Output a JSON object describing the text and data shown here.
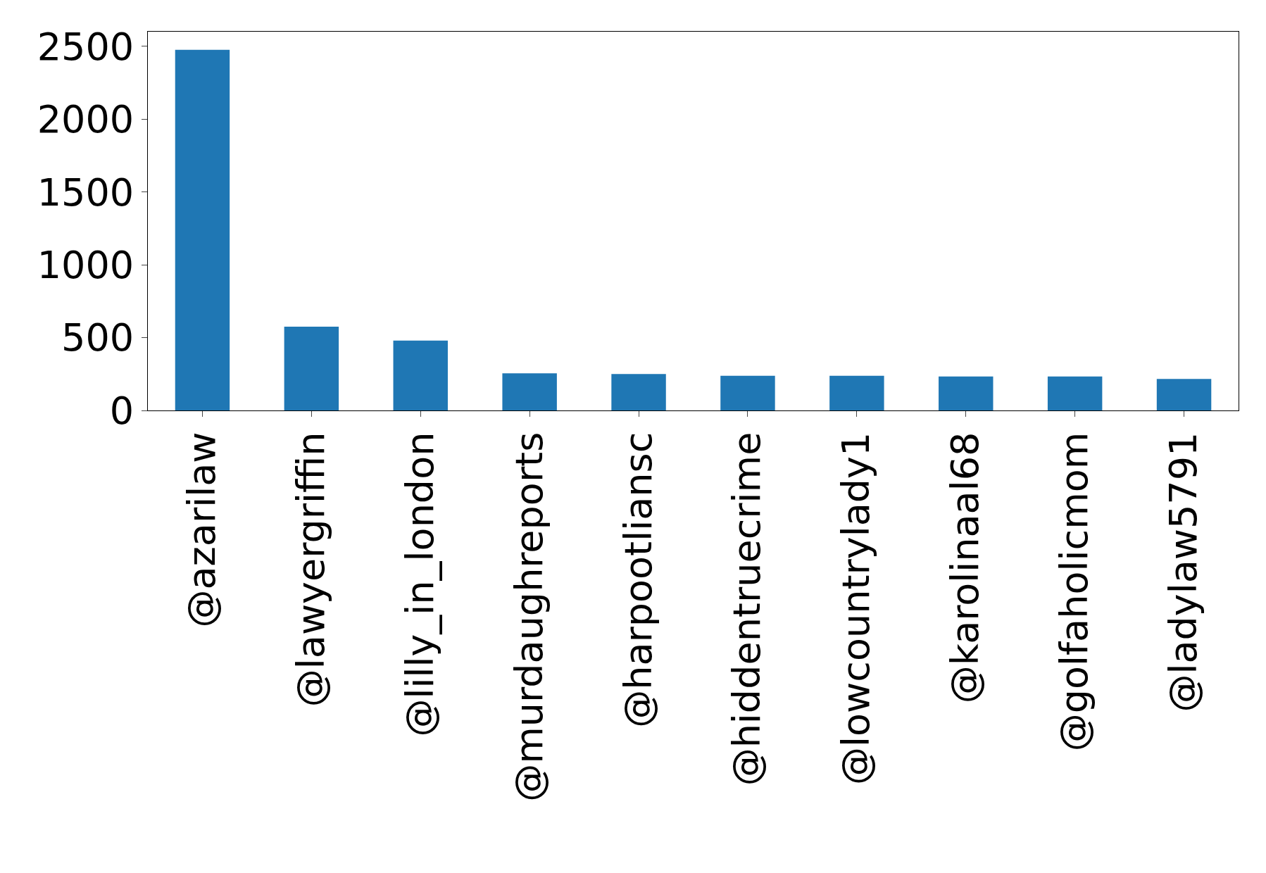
{
  "chart_data": {
    "type": "bar",
    "categories": [
      "@azarilaw",
      "@lawyergriffin",
      "@lilly_in_london",
      "@murdaughreports",
      "@harpootliansc",
      "@hiddentruecrime",
      "@lowcountrylady1",
      "@karolinaal68",
      "@golfaholicmom",
      "@ladylaw5791"
    ],
    "values": [
      2475,
      575,
      480,
      255,
      250,
      238,
      238,
      233,
      233,
      216
    ],
    "color": "#1f77b4",
    "ylim": [
      0,
      2600
    ],
    "yticks": [
      0,
      500,
      1000,
      1500,
      2000,
      2500
    ],
    "legend": false
  }
}
